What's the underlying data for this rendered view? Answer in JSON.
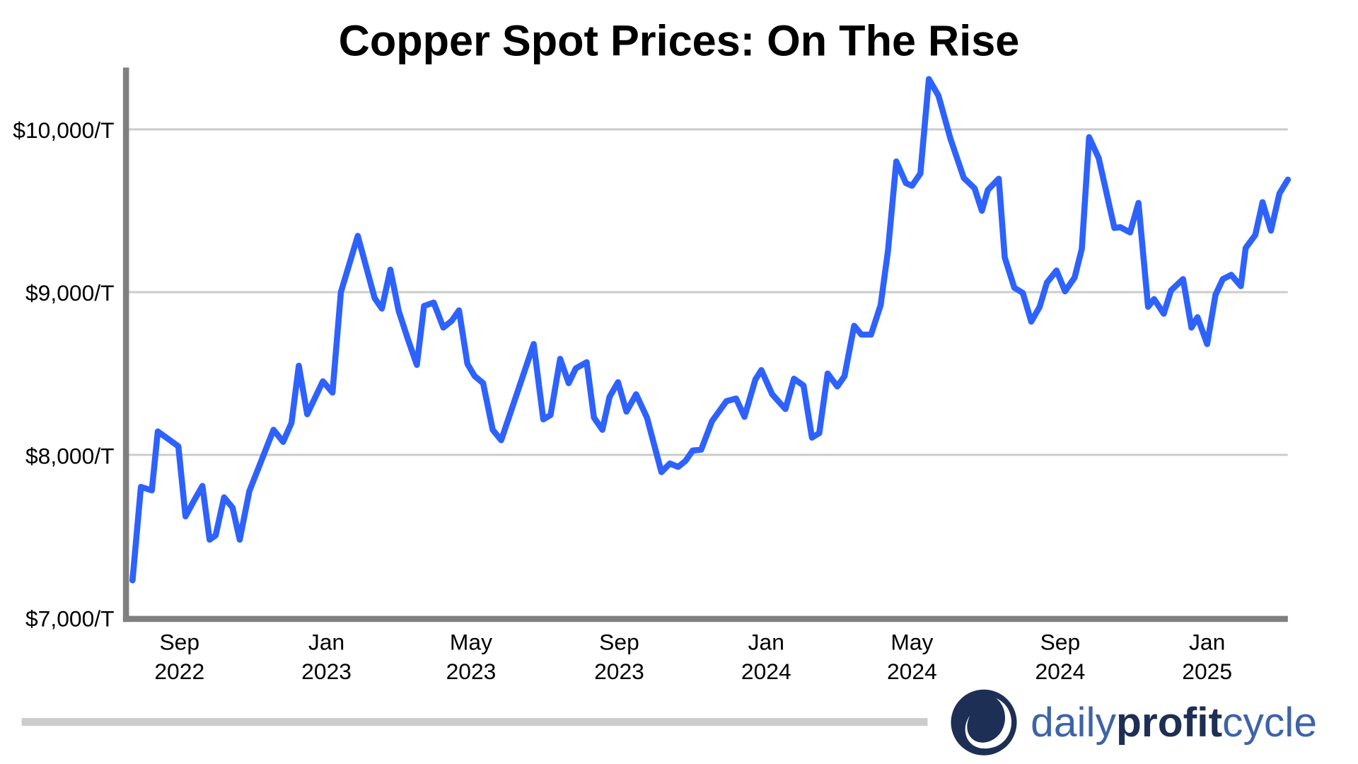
{
  "chart_data": {
    "type": "line",
    "title": "Copper Spot Prices: On The Rise",
    "xlabel": "",
    "ylabel": "",
    "ylim": [
      7000,
      10380
    ],
    "xlim": [
      "2022-07-24",
      "2025-03-09"
    ],
    "grid": "horizontal",
    "line_color": "#2e62ff",
    "y_ticks": [
      {
        "value": 7000,
        "label": "$7,000/T"
      },
      {
        "value": 8000,
        "label": "$8,000/T"
      },
      {
        "value": 9000,
        "label": "$9,000/T"
      },
      {
        "value": 10000,
        "label": "$10,000/T"
      }
    ],
    "x_ticks": [
      {
        "date": "2022-09-01",
        "month": "Sep",
        "year": "2022"
      },
      {
        "date": "2023-01-01",
        "month": "Jan",
        "year": "2023"
      },
      {
        "date": "2023-05-01",
        "month": "May",
        "year": "2023"
      },
      {
        "date": "2023-09-01",
        "month": "Sep",
        "year": "2023"
      },
      {
        "date": "2024-01-01",
        "month": "Jan",
        "year": "2024"
      },
      {
        "date": "2024-05-01",
        "month": "May",
        "year": "2024"
      },
      {
        "date": "2024-09-01",
        "month": "Sep",
        "year": "2024"
      },
      {
        "date": "2025-01-01",
        "month": "Jan",
        "year": "2025"
      }
    ],
    "series": [
      {
        "x": [
          "2022-07-24",
          "2022-07-31",
          "2022-08-09",
          "2022-08-14",
          "2022-08-31",
          "2022-09-06",
          "2022-09-13",
          "2022-09-20",
          "2022-09-26",
          "2022-10-01",
          "2022-10-08",
          "2022-10-15",
          "2022-10-21",
          "2022-10-29",
          "2022-11-18",
          "2022-11-26",
          "2022-12-03",
          "2022-12-09",
          "2022-12-16",
          "2022-12-29",
          "2023-01-06",
          "2023-01-13",
          "2023-01-27",
          "2023-02-10",
          "2023-02-16",
          "2023-02-23",
          "2023-03-02",
          "2023-03-10",
          "2023-03-17",
          "2023-03-23",
          "2023-03-31",
          "2023-04-08",
          "2023-04-15",
          "2023-04-21",
          "2023-04-28",
          "2023-05-04",
          "2023-05-11",
          "2023-05-19",
          "2023-05-26",
          "2023-06-22",
          "2023-06-30",
          "2023-07-06",
          "2023-07-14",
          "2023-07-21",
          "2023-07-27",
          "2023-08-05",
          "2023-08-11",
          "2023-08-18",
          "2023-08-24",
          "2023-08-31",
          "2023-09-07",
          "2023-09-15",
          "2023-09-24",
          "2023-10-06",
          "2023-10-13",
          "2023-10-20",
          "2023-10-26",
          "2023-11-01",
          "2023-11-08",
          "2023-11-17",
          "2023-11-29",
          "2023-12-07",
          "2023-12-14",
          "2023-12-23",
          "2023-12-28",
          "2024-01-06",
          "2024-01-17",
          "2024-01-24",
          "2024-02-01",
          "2024-02-08",
          "2024-02-14",
          "2024-02-21",
          "2024-02-29",
          "2024-03-06",
          "2024-03-14",
          "2024-03-20",
          "2024-03-28",
          "2024-04-05",
          "2024-04-11",
          "2024-04-18",
          "2024-04-26",
          "2024-05-01",
          "2024-05-08",
          "2024-05-15",
          "2024-05-23",
          "2024-06-02",
          "2024-06-13",
          "2024-06-22",
          "2024-06-28",
          "2024-07-03",
          "2024-07-12",
          "2024-07-17",
          "2024-07-25",
          "2024-08-01",
          "2024-08-08",
          "2024-08-15",
          "2024-08-21",
          "2024-08-29",
          "2024-09-05",
          "2024-09-13",
          "2024-09-19",
          "2024-09-25",
          "2024-10-03",
          "2024-10-16",
          "2024-10-21",
          "2024-10-29",
          "2024-11-05",
          "2024-11-13",
          "2024-11-18",
          "2024-11-26",
          "2024-12-02",
          "2024-12-12",
          "2024-12-19",
          "2024-12-24",
          "2025-01-01",
          "2025-01-08",
          "2025-01-14",
          "2025-01-21",
          "2025-01-29",
          "2025-02-02",
          "2025-02-10",
          "2025-02-16",
          "2025-02-23",
          "2025-03-02",
          "2025-03-09"
        ],
        "y": [
          7229,
          7803,
          7782,
          8144,
          8053,
          7622,
          7718,
          7809,
          7479,
          7505,
          7739,
          7676,
          7479,
          7777,
          8154,
          8080,
          8197,
          8548,
          8250,
          8452,
          8383,
          9000,
          9346,
          8963,
          8899,
          9138,
          8883,
          8702,
          8553,
          8915,
          8936,
          8782,
          8824,
          8888,
          8559,
          8484,
          8441,
          8154,
          8090,
          8681,
          8218,
          8245,
          8590,
          8441,
          8532,
          8569,
          8229,
          8154,
          8356,
          8447,
          8266,
          8372,
          8229,
          7894,
          7947,
          7926,
          7963,
          8027,
          8032,
          8207,
          8330,
          8346,
          8234,
          8463,
          8521,
          8372,
          8282,
          8468,
          8426,
          8106,
          8133,
          8500,
          8420,
          8484,
          8793,
          8739,
          8739,
          8920,
          9250,
          9803,
          9670,
          9654,
          9729,
          10309,
          10207,
          9941,
          9702,
          9638,
          9500,
          9628,
          9697,
          9213,
          9027,
          8995,
          8819,
          8910,
          9059,
          9133,
          9005,
          9090,
          9266,
          9952,
          9824,
          9394,
          9399,
          9367,
          9548,
          8910,
          8957,
          8867,
          9011,
          9080,
          8782,
          8846,
          8681,
          8984,
          9080,
          9106,
          9037,
          9271,
          9351,
          9553,
          9378,
          9606,
          9691
        ]
      }
    ]
  },
  "logo": {
    "part1": "daily",
    "part2": "profit",
    "part3": "cycle",
    "colors": {
      "dark": "#1e2f55",
      "light": "#3d63a8"
    }
  }
}
